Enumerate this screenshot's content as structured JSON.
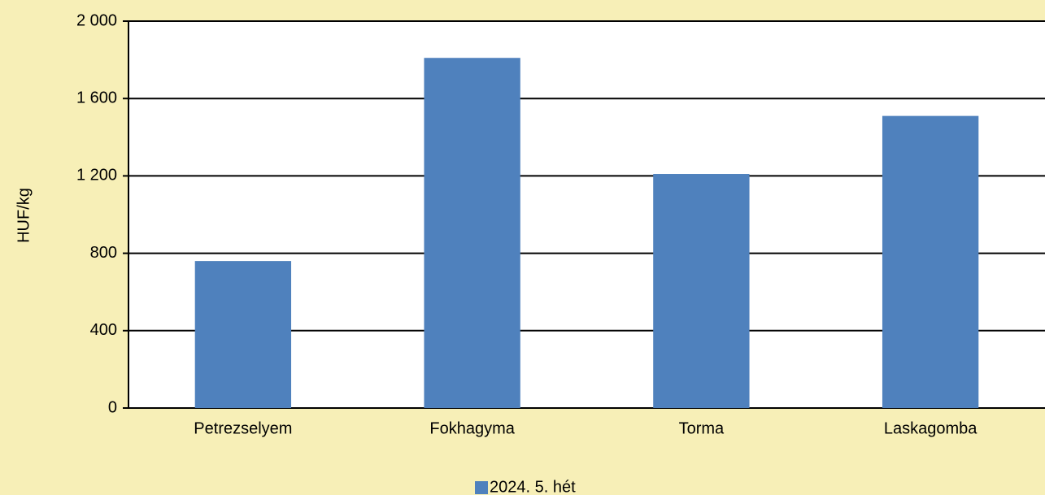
{
  "chart_data": {
    "type": "bar",
    "y_label": "HUF/kg",
    "categories": [
      "Petrezselyem",
      "Fokhagyma",
      "Torma",
      "Laskagomba"
    ],
    "series": [
      {
        "name": "2024. 5. hét",
        "color": "#4f81bd",
        "values": [
          760,
          1810,
          1210,
          1510
        ]
      }
    ],
    "ylim": [
      0,
      2000
    ],
    "yticks": [
      0,
      400,
      800,
      {
        "value": 1200,
        "label": "1 200"
      },
      {
        "value": 1600,
        "label": "1 600"
      },
      {
        "value": 2000,
        "label": "2 000"
      }
    ],
    "grid": true,
    "legend": "bottom"
  }
}
